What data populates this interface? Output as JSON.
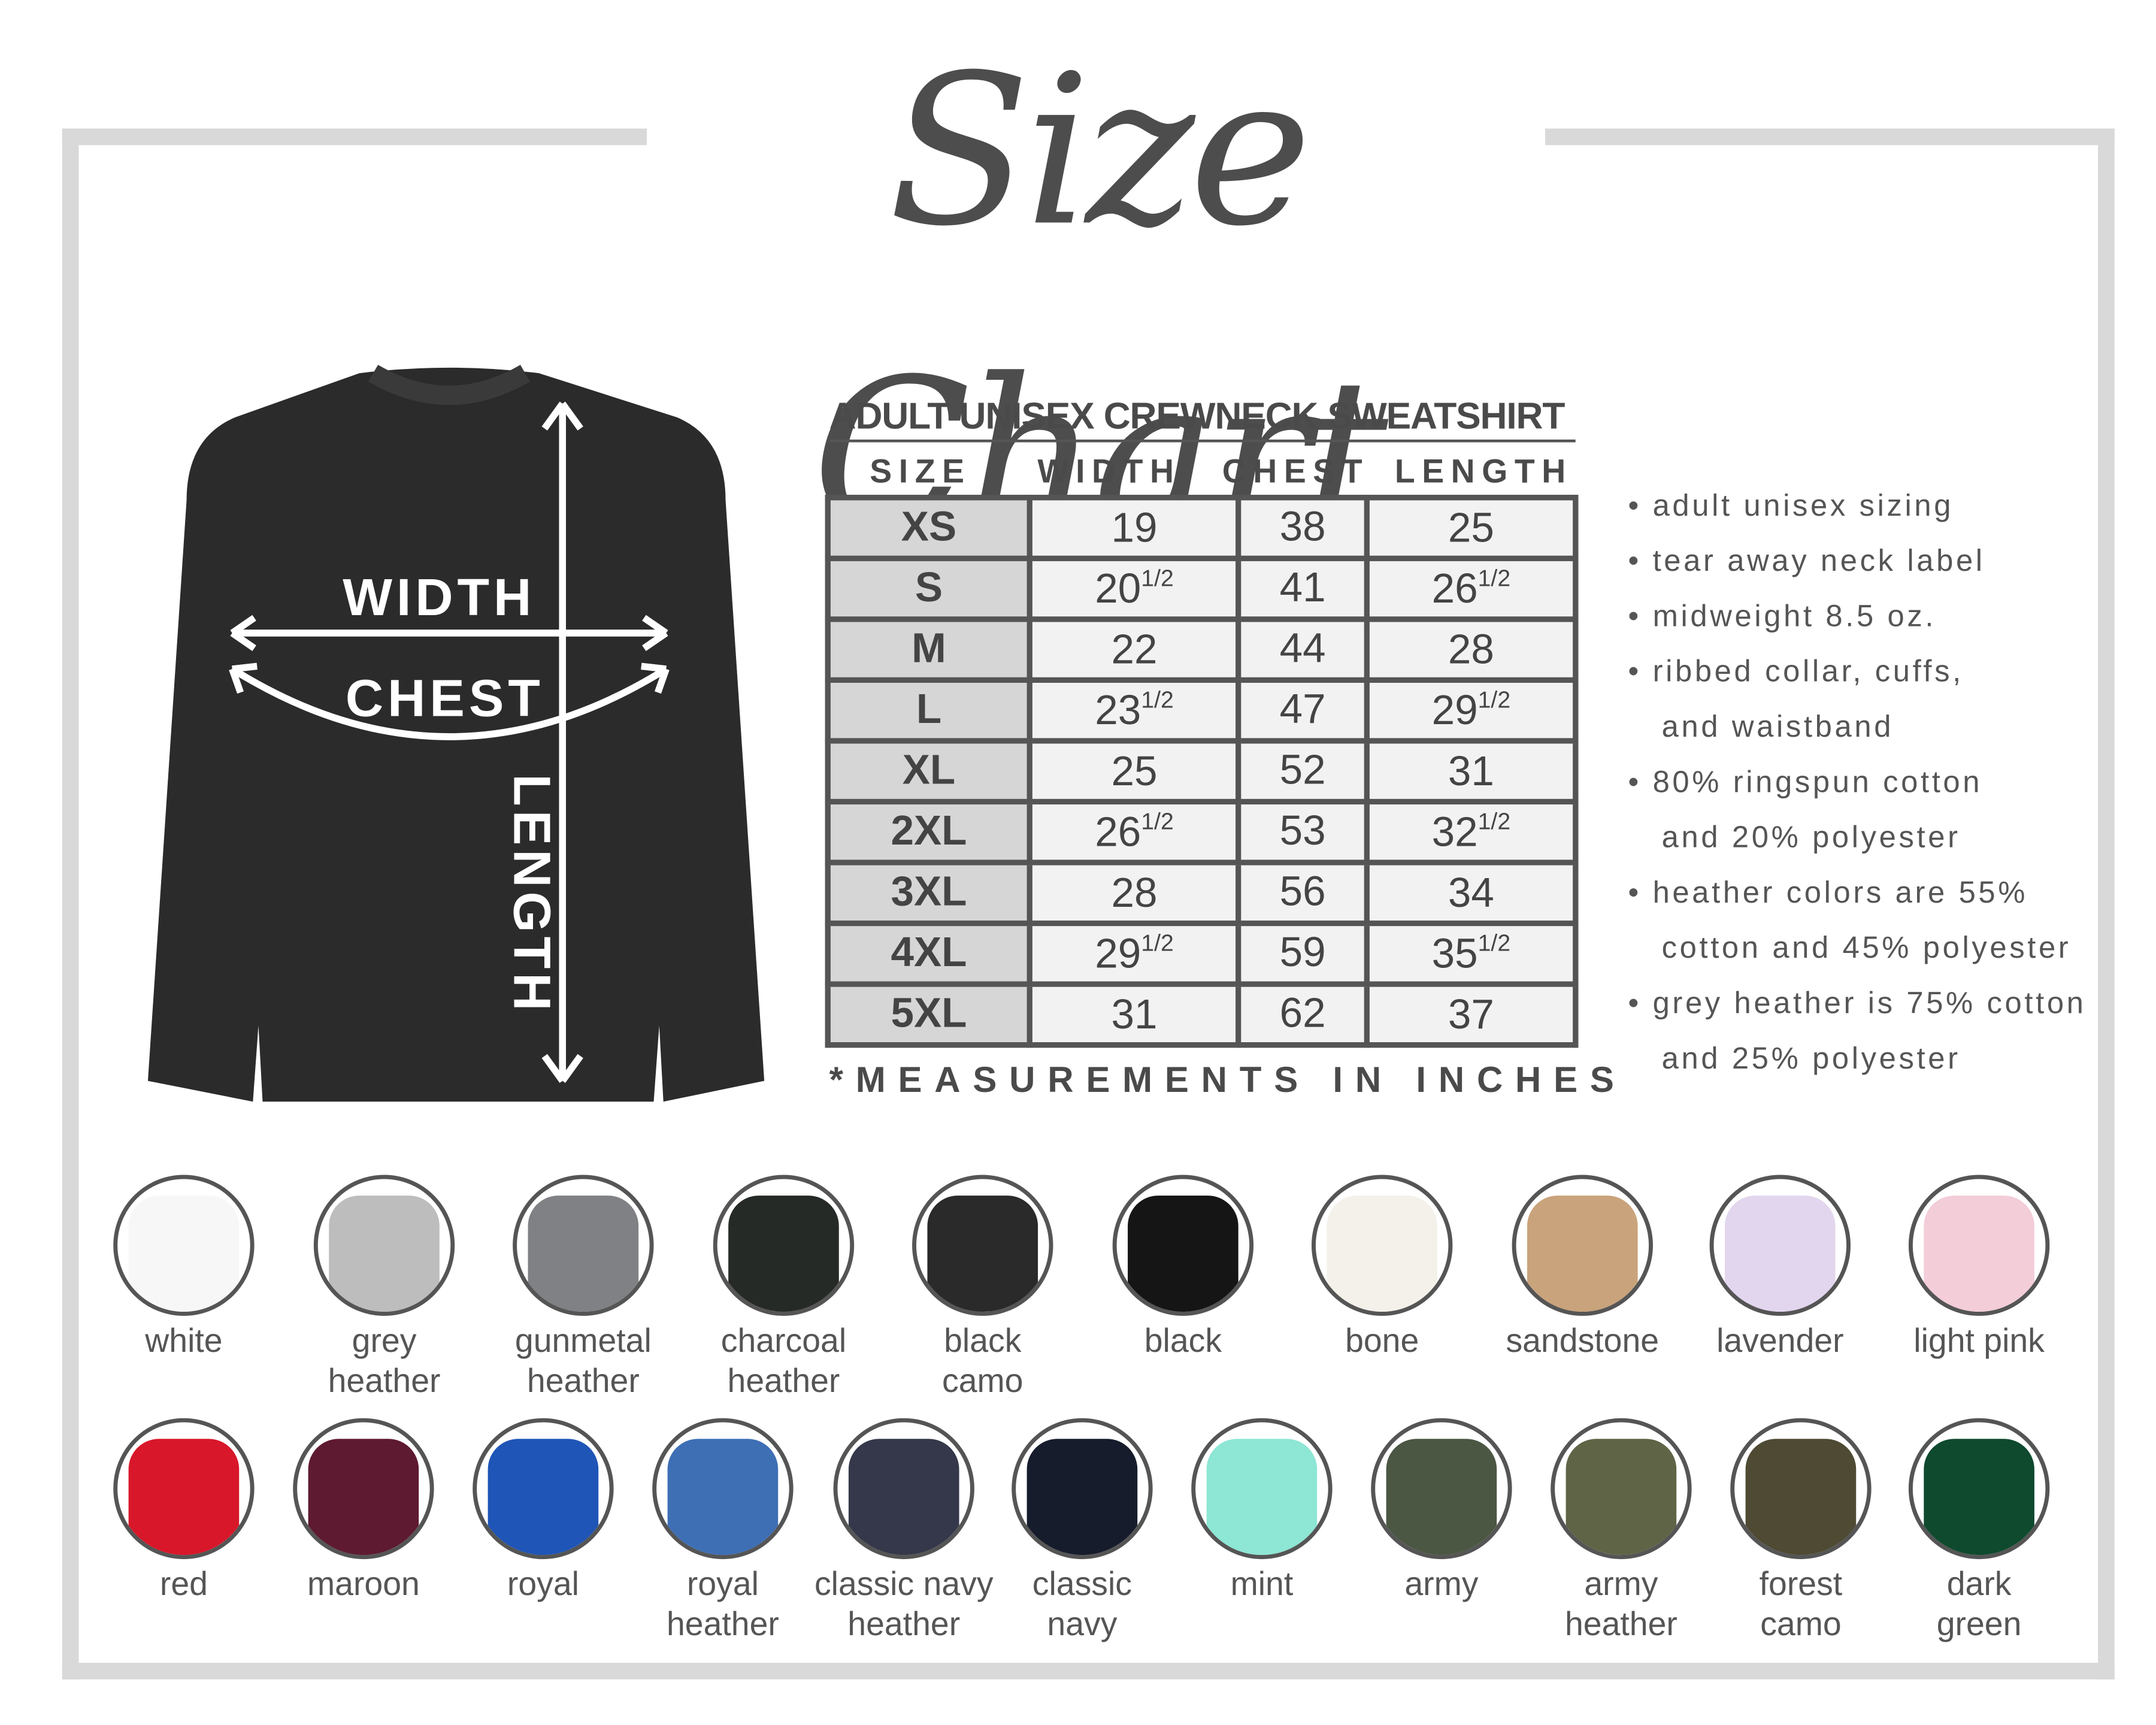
{
  "title": "Size Chart",
  "diagram_labels": {
    "width": "WIDTH",
    "chest": "CHEST",
    "length": "LENGTH"
  },
  "table": {
    "title": "ADULT UNISEX CREWNECK SWEATSHIRT",
    "headers": [
      "SIZE",
      "WIDTH",
      "CHEST",
      "LENGTH"
    ],
    "rows": [
      {
        "size": "XS",
        "width": "19",
        "width_frac": "",
        "chest": "38",
        "length": "25",
        "length_frac": ""
      },
      {
        "size": "S",
        "width": "20",
        "width_frac": "1/2",
        "chest": "41",
        "length": "26",
        "length_frac": "1/2"
      },
      {
        "size": "M",
        "width": "22",
        "width_frac": "",
        "chest": "44",
        "length": "28",
        "length_frac": ""
      },
      {
        "size": "L",
        "width": "23",
        "width_frac": "1/2",
        "chest": "47",
        "length": "29",
        "length_frac": "1/2"
      },
      {
        "size": "XL",
        "width": "25",
        "width_frac": "",
        "chest": "52",
        "length": "31",
        "length_frac": ""
      },
      {
        "size": "2XL",
        "width": "26",
        "width_frac": "1/2",
        "chest": "53",
        "length": "32",
        "length_frac": "1/2"
      },
      {
        "size": "3XL",
        "width": "28",
        "width_frac": "",
        "chest": "56",
        "length": "34",
        "length_frac": ""
      },
      {
        "size": "4XL",
        "width": "29",
        "width_frac": "1/2",
        "chest": "59",
        "length": "35",
        "length_frac": "1/2"
      },
      {
        "size": "5XL",
        "width": "31",
        "width_frac": "",
        "chest": "62",
        "length": "37",
        "length_frac": ""
      }
    ],
    "footnote": "*MEASUREMENTS IN INCHES"
  },
  "bullets": [
    "• adult unisex sizing",
    "• tear away neck label",
    "• midweight 8.5 oz.",
    "• ribbed collar, cuffs,",
    "   and waistband",
    "• 80% ringspun cotton",
    "   and 20% polyester",
    "• heather colors are 55%",
    "   cotton and 45% polyester",
    "• grey heather is 75% cotton",
    "   and 25% polyester"
  ],
  "colors_row1": [
    {
      "name": "white",
      "color": "#f7f7f7"
    },
    {
      "name": "grey\nheather",
      "color": "#bdbdbd"
    },
    {
      "name": "gunmetal\nheather",
      "color": "#7f8184"
    },
    {
      "name": "charcoal\nheather",
      "color": "#262a26"
    },
    {
      "name": "black\ncamo",
      "color": "#2a2a2a"
    },
    {
      "name": "black",
      "color": "#151515"
    },
    {
      "name": "bone",
      "color": "#f4f1ea"
    },
    {
      "name": "sandstone",
      "color": "#c9a37b"
    },
    {
      "name": "lavender",
      "color": "#e2d6ef"
    },
    {
      "name": "light pink",
      "color": "#f3cdd8"
    }
  ],
  "colors_row2": [
    {
      "name": "red",
      "color": "#d8172a"
    },
    {
      "name": "maroon",
      "color": "#5e1a30"
    },
    {
      "name": "royal",
      "color": "#1f55b6"
    },
    {
      "name": "royal\nheather",
      "color": "#3e6fb5"
    },
    {
      "name": "classic navy\nheather",
      "color": "#34384a"
    },
    {
      "name": "classic\nnavy",
      "color": "#161c2c"
    },
    {
      "name": "mint",
      "color": "#8ee6d4"
    },
    {
      "name": "army",
      "color": "#4c5743"
    },
    {
      "name": "army\nheather",
      "color": "#5f6446"
    },
    {
      "name": "forest\ncamo",
      "color": "#4e4a33"
    },
    {
      "name": "dark\ngreen",
      "color": "#0f4a2e"
    }
  ]
}
